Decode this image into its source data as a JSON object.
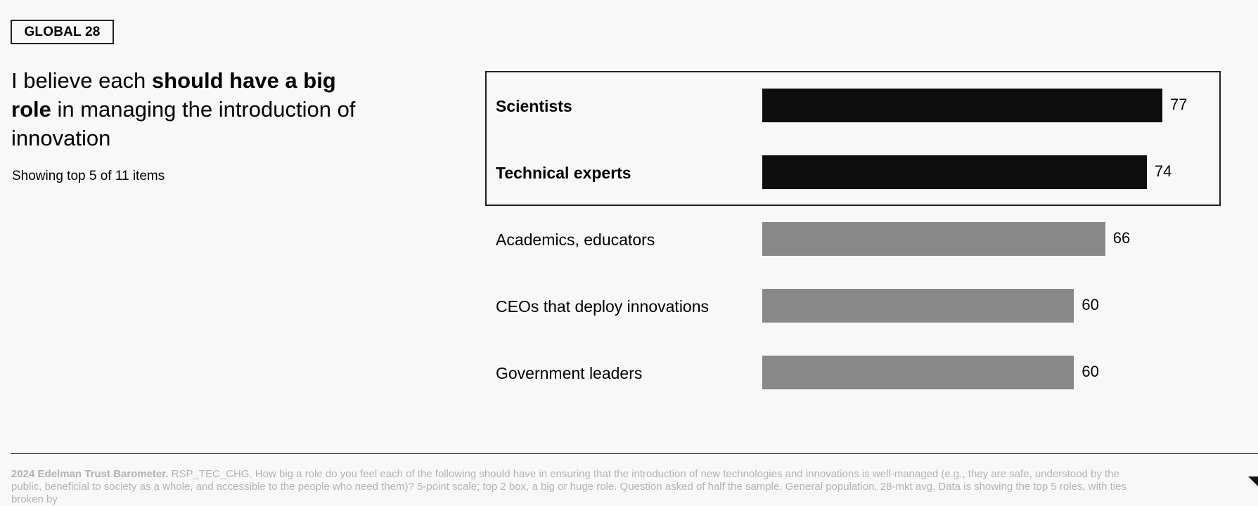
{
  "badge": "GLOBAL 28",
  "headline": {
    "part1": "I believe each ",
    "bold1": "should have a big",
    "bold2": "role",
    "part2": " in managing the introduction of innovation"
  },
  "subtitle": "Showing top 5 of 11 items",
  "chart_data": {
    "type": "bar",
    "orientation": "horizontal",
    "title": "I believe each should have a big role in managing the introduction of innovation",
    "categories": [
      "Scientists",
      "Technical experts",
      "Academics, educators",
      "CEOs that deploy innovations",
      "Government leaders"
    ],
    "values": [
      77,
      74,
      66,
      60,
      60
    ],
    "highlighted": [
      true,
      true,
      false,
      false,
      false
    ],
    "xlim": [
      0,
      100
    ],
    "colors": {
      "highlight": "#0e0e0e",
      "default": "#888888"
    },
    "xlabel": "",
    "ylabel": ""
  },
  "footnote": {
    "source": "2024 Edelman Trust Barometer.",
    "text": " RSP_TEC_CHG. How big a role do you feel each of the following should have in ensuring that the introduction of new technologies and innovations is well-managed (e.g., they are safe, understood by the public, beneficial to society as a whole, and accessible to the people who need them)? 5-point scale; top 2 box, a big or huge role. Question asked of half the sample. General population, 28-mkt avg. Data is showing the top 5 roles, with ties broken by"
  }
}
